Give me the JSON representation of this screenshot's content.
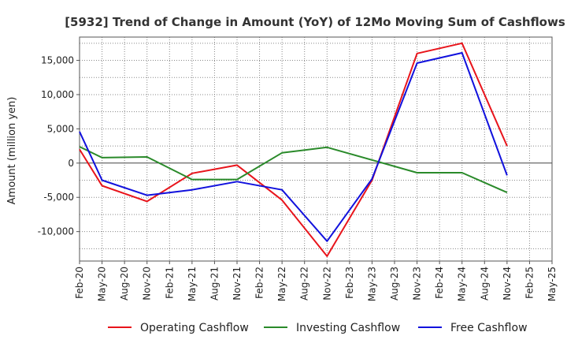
{
  "chart_data": {
    "type": "line",
    "title": "[5932]  Trend of Change in Amount (YoY) of 12Mo Moving Sum of Cashflows",
    "xlabel": "",
    "ylabel": "Amount (million yen)",
    "ylim": [
      -14300,
      18400
    ],
    "y_ticks": [
      15000,
      10000,
      5000,
      0,
      -5000,
      -10000
    ],
    "y_tick_labels": [
      "15,000",
      "10,000",
      "5,000",
      "0",
      "-5,000",
      "-10,000"
    ],
    "grid": true,
    "legend_position": "bottom",
    "categories": [
      "Feb-20",
      "May-20",
      "Aug-20",
      "Nov-20",
      "Feb-21",
      "May-21",
      "Aug-21",
      "Nov-21",
      "Feb-22",
      "May-22",
      "Aug-22",
      "Nov-22",
      "Feb-23",
      "May-23",
      "Aug-23",
      "Nov-23",
      "Feb-24",
      "May-24",
      "Aug-24",
      "Nov-24",
      "Feb-25",
      "May-25"
    ],
    "series": [
      {
        "name": "Operating Cashflow",
        "color": "#e8141b",
        "values": [
          2000,
          -3300,
          null,
          -5600,
          null,
          -1500,
          null,
          -300,
          null,
          -5400,
          null,
          -13600,
          null,
          -2500,
          null,
          16000,
          null,
          17500,
          null,
          2500,
          null,
          null
        ]
      },
      {
        "name": "Investing Cashflow",
        "color": "#2a8a2a",
        "values": [
          2400,
          800,
          null,
          900,
          null,
          -2400,
          null,
          -2400,
          null,
          1500,
          null,
          2300,
          null,
          null,
          null,
          -1400,
          null,
          -1400,
          null,
          -4300,
          null,
          null
        ]
      },
      {
        "name": "Free Cashflow",
        "color": "#1111dd",
        "values": [
          4600,
          -2500,
          null,
          -4700,
          null,
          -3900,
          null,
          -2700,
          null,
          -3900,
          null,
          -11400,
          null,
          -2300,
          null,
          14600,
          null,
          16100,
          null,
          -1800,
          null,
          null
        ]
      }
    ]
  }
}
